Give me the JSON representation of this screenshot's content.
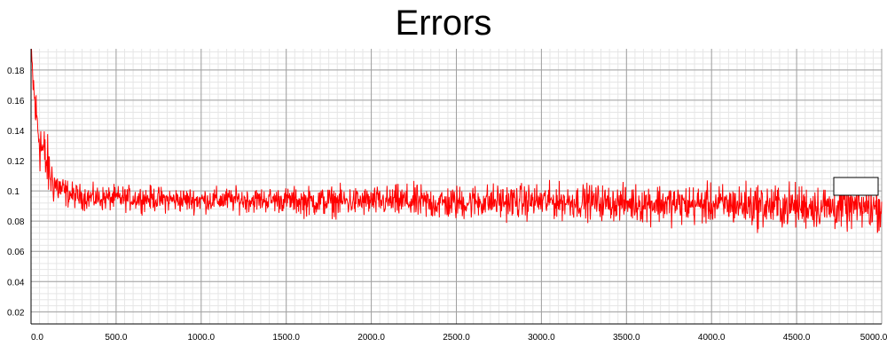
{
  "chart_data": {
    "type": "line",
    "title": "Errors",
    "xlabel": "",
    "ylabel": "",
    "xlim": [
      0,
      5000
    ],
    "ylim": [
      0.012,
      0.194
    ],
    "x_ticks": [
      0,
      500,
      1000,
      1500,
      2000,
      2500,
      3000,
      3500,
      4000,
      4500,
      5000
    ],
    "x_tick_labels": [
      "0.0",
      "500.0",
      "1000.0",
      "1500.0",
      "2000.0",
      "2500.0",
      "3000.0",
      "3500.0",
      "4000.0",
      "4500.0",
      "5000.0"
    ],
    "y_ticks": [
      0.02,
      0.04,
      0.06,
      0.08,
      0.1,
      0.12,
      0.14,
      0.16,
      0.18
    ],
    "y_tick_labels": [
      "0.02",
      "0.04",
      "0.06",
      "0.08",
      "0.1",
      "0.12",
      "0.14",
      "0.16",
      "0.18"
    ],
    "grid": true,
    "minor_grid": true,
    "legend": "top-right",
    "series": [
      {
        "color": "#ff0000",
        "x": [
          0,
          10,
          20,
          30,
          40,
          50,
          60,
          80,
          100,
          120,
          150,
          200,
          250,
          300,
          400,
          500,
          600,
          700,
          800,
          900,
          1000,
          1100,
          1200,
          1300,
          1400,
          1500,
          1600,
          1700,
          1800,
          1900,
          2000,
          2100,
          2200,
          2300,
          2400,
          2500,
          2600,
          2700,
          2800,
          2900,
          3000,
          3100,
          3200,
          3300,
          3400,
          3500,
          3600,
          3700,
          3800,
          3900,
          4000,
          4100,
          4200,
          4300,
          4400,
          4500,
          4600,
          4700,
          4800,
          4900,
          5000
        ],
        "y": [
          0.19,
          0.175,
          0.16,
          0.15,
          0.142,
          0.135,
          0.13,
          0.122,
          0.115,
          0.108,
          0.103,
          0.099,
          0.097,
          0.096,
          0.095,
          0.095,
          0.095,
          0.095,
          0.094,
          0.094,
          0.094,
          0.094,
          0.094,
          0.094,
          0.094,
          0.094,
          0.093,
          0.093,
          0.093,
          0.093,
          0.093,
          0.093,
          0.093,
          0.092,
          0.092,
          0.092,
          0.093,
          0.093,
          0.093,
          0.093,
          0.093,
          0.093,
          0.093,
          0.093,
          0.092,
          0.092,
          0.092,
          0.092,
          0.091,
          0.091,
          0.091,
          0.091,
          0.091,
          0.09,
          0.09,
          0.09,
          0.09,
          0.089,
          0.089,
          0.089,
          0.089
        ],
        "y_spread": [
          0.006,
          0.01,
          0.012,
          0.012,
          0.013,
          0.014,
          0.014,
          0.013,
          0.012,
          0.01,
          0.008,
          0.006,
          0.005,
          0.005,
          0.005,
          0.005,
          0.005,
          0.005,
          0.005,
          0.005,
          0.005,
          0.005,
          0.005,
          0.005,
          0.005,
          0.005,
          0.006,
          0.006,
          0.006,
          0.006,
          0.006,
          0.006,
          0.007,
          0.007,
          0.007,
          0.007,
          0.007,
          0.007,
          0.007,
          0.007,
          0.007,
          0.007,
          0.007,
          0.007,
          0.007,
          0.007,
          0.008,
          0.008,
          0.008,
          0.008,
          0.008,
          0.008,
          0.009,
          0.009,
          0.009,
          0.009,
          0.009,
          0.009,
          0.009,
          0.009,
          0.009
        ]
      }
    ]
  }
}
